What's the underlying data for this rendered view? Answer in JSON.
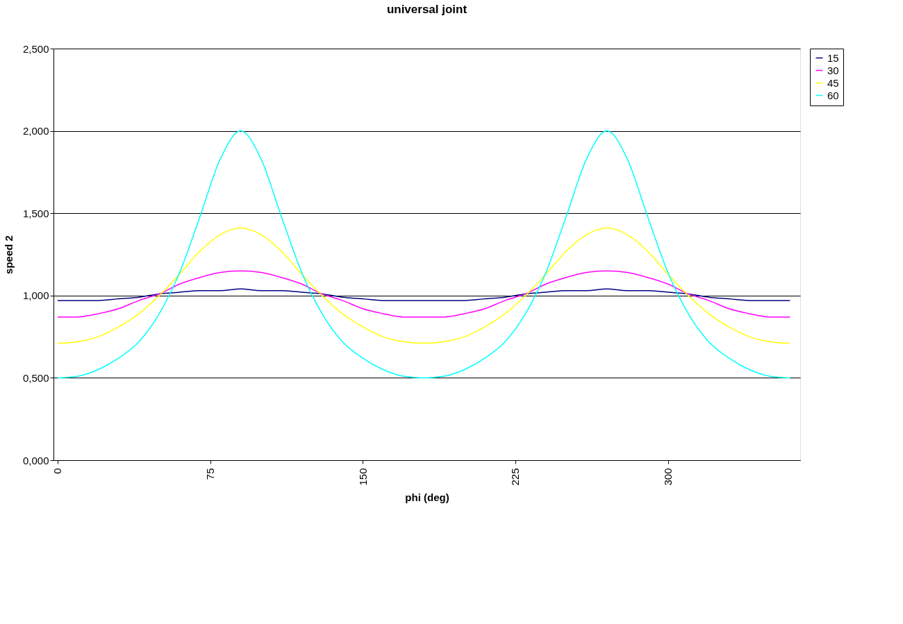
{
  "chart_data": {
    "type": "line",
    "title": "universal joint",
    "xlabel": "phi (deg)",
    "ylabel": "speed 2",
    "x": [
      0,
      10,
      20,
      30,
      40,
      50,
      60,
      70,
      80,
      90,
      100,
      110,
      120,
      130,
      140,
      150,
      160,
      170,
      180,
      190,
      200,
      210,
      220,
      230,
      240,
      250,
      260,
      270,
      280,
      290,
      300,
      310,
      320,
      330,
      340,
      350,
      360
    ],
    "series": [
      {
        "name": "15",
        "color": "#000080",
        "values": [
          0.97,
          0.97,
          0.97,
          0.98,
          0.99,
          1.01,
          1.02,
          1.03,
          1.03,
          1.04,
          1.03,
          1.03,
          1.02,
          1.01,
          0.99,
          0.98,
          0.97,
          0.97,
          0.97,
          0.97,
          0.97,
          0.98,
          0.99,
          1.01,
          1.02,
          1.03,
          1.03,
          1.04,
          1.03,
          1.03,
          1.02,
          1.01,
          0.99,
          0.98,
          0.97,
          0.97,
          0.97
        ]
      },
      {
        "name": "30",
        "color": "#ff00ff",
        "values": [
          0.87,
          0.87,
          0.89,
          0.92,
          0.97,
          1.01,
          1.07,
          1.11,
          1.14,
          1.15,
          1.14,
          1.11,
          1.07,
          1.01,
          0.97,
          0.92,
          0.89,
          0.87,
          0.87,
          0.87,
          0.89,
          0.92,
          0.97,
          1.01,
          1.07,
          1.11,
          1.14,
          1.15,
          1.14,
          1.11,
          1.07,
          1.01,
          0.97,
          0.92,
          0.89,
          0.87,
          0.87
        ]
      },
      {
        "name": "45",
        "color": "#ffff00",
        "values": [
          0.71,
          0.72,
          0.75,
          0.81,
          0.89,
          1.0,
          1.13,
          1.27,
          1.37,
          1.41,
          1.37,
          1.27,
          1.13,
          1.0,
          0.89,
          0.81,
          0.75,
          0.72,
          0.71,
          0.72,
          0.75,
          0.81,
          0.89,
          1.0,
          1.13,
          1.27,
          1.37,
          1.41,
          1.37,
          1.27,
          1.13,
          1.0,
          0.89,
          0.81,
          0.75,
          0.72,
          0.71
        ]
      },
      {
        "name": "60",
        "color": "#00ffff",
        "values": [
          0.5,
          0.51,
          0.55,
          0.62,
          0.72,
          0.89,
          1.14,
          1.48,
          1.83,
          2.0,
          1.83,
          1.48,
          1.14,
          0.89,
          0.72,
          0.62,
          0.55,
          0.51,
          0.5,
          0.51,
          0.55,
          0.62,
          0.72,
          0.89,
          1.14,
          1.48,
          1.83,
          2.0,
          1.83,
          1.48,
          1.14,
          0.89,
          0.72,
          0.62,
          0.55,
          0.51,
          0.5
        ]
      }
    ],
    "xlim": [
      -2,
      365
    ],
    "xticks": [
      0,
      75,
      150,
      225,
      300
    ],
    "ylim": [
      0,
      2.5
    ],
    "yticks": [
      {
        "value": 0,
        "label": "0,000"
      },
      {
        "value": 0.5,
        "label": "0,500"
      },
      {
        "value": 1,
        "label": "1,000"
      },
      {
        "value": 1.5,
        "label": "1,500"
      },
      {
        "value": 2,
        "label": "2,000"
      },
      {
        "value": 2.5,
        "label": "2,500"
      }
    ],
    "grid": "y",
    "legend": "right",
    "marker": "none",
    "line_style": "solid"
  }
}
